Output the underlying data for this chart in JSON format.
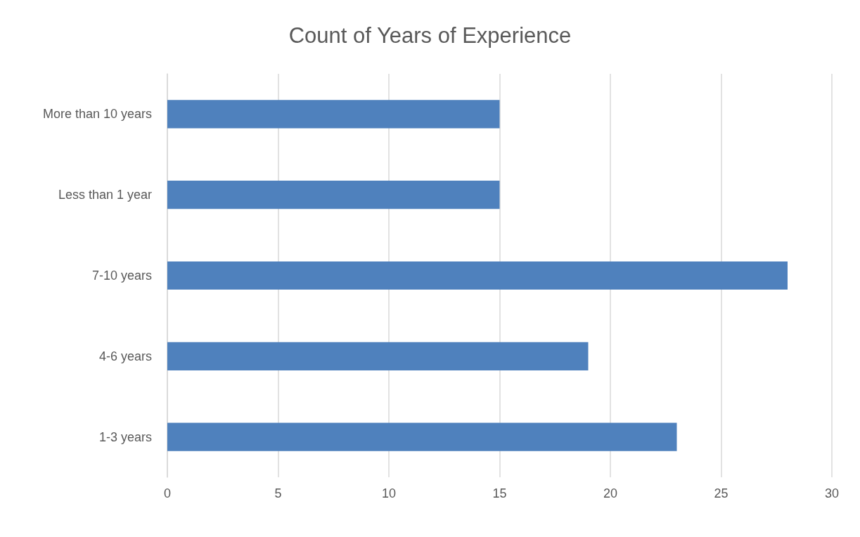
{
  "chart_data": {
    "type": "bar",
    "orientation": "horizontal",
    "title": "Count of Years of Experience",
    "categories": [
      "More than 10 years",
      "Less than 1 year",
      "7-10 years",
      "4-6 years",
      "1-3 years"
    ],
    "values": [
      15,
      15,
      28,
      19,
      23
    ],
    "color": "#4f81bd",
    "xlim": [
      0,
      30
    ],
    "xticks": [
      0,
      5,
      10,
      15,
      20,
      25,
      30
    ],
    "grid": "x"
  }
}
